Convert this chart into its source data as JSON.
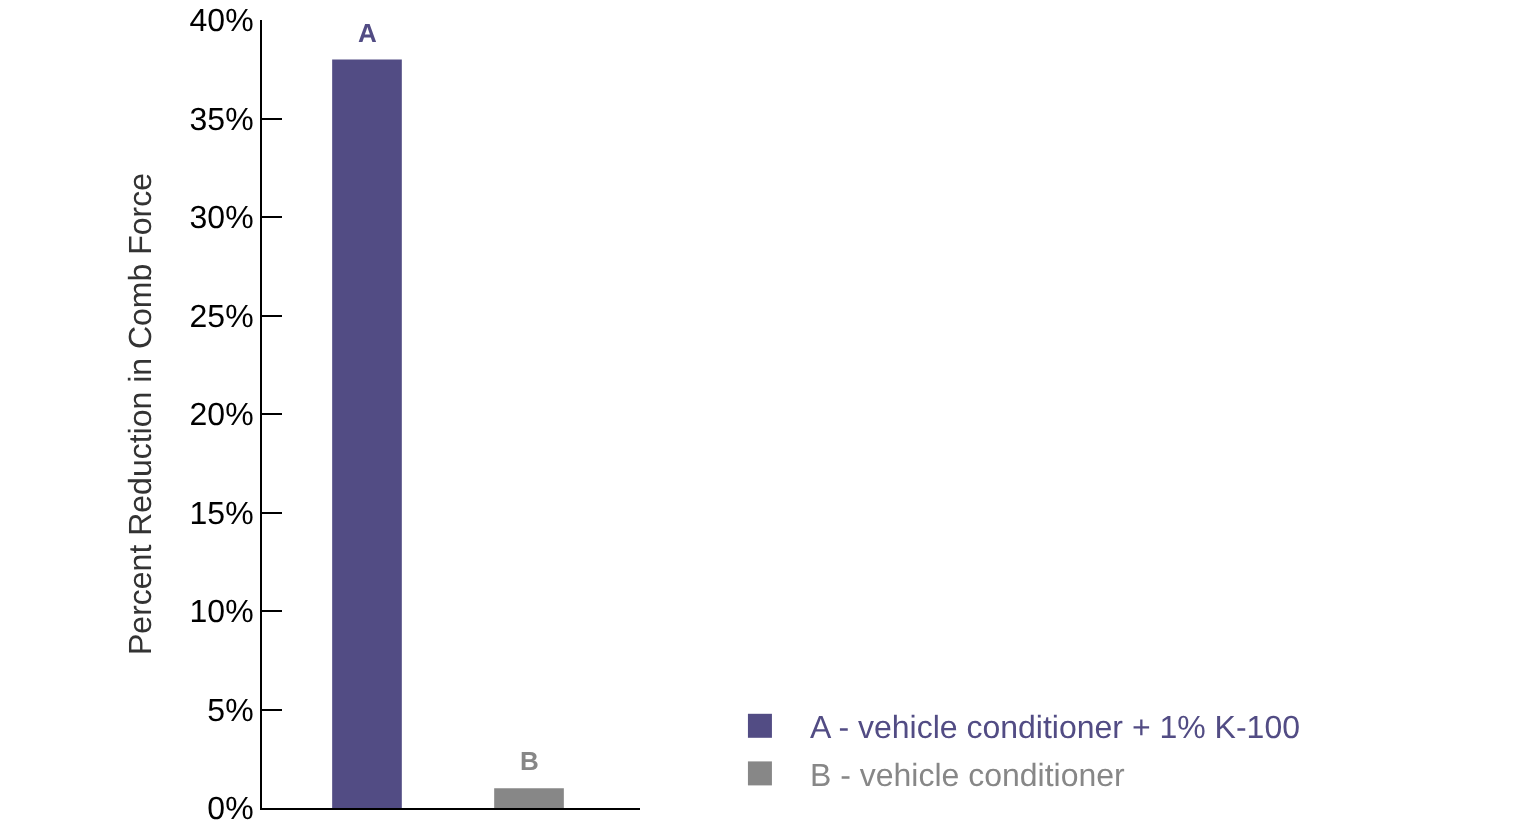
{
  "chart_data": {
    "type": "bar",
    "ylabel": "Percent Reduction in Comb Force",
    "categories": [
      "A",
      "B"
    ],
    "series": [
      {
        "name": "A - vehicle conditioner + 1% K-100",
        "color": "#524c84",
        "values": [
          38,
          null
        ]
      },
      {
        "name": "B - vehicle conditioner",
        "color": "#878787",
        "values": [
          null,
          1
        ]
      }
    ],
    "ylim": [
      0,
      40
    ],
    "yticks": [
      {
        "value": 0,
        "label": "0%"
      },
      {
        "value": 5,
        "label": "5%"
      },
      {
        "value": 10,
        "label": "10%"
      },
      {
        "value": 15,
        "label": "15%"
      },
      {
        "value": 20,
        "label": "20%"
      },
      {
        "value": 25,
        "label": "25%"
      },
      {
        "value": 30,
        "label": "30%"
      },
      {
        "value": 35,
        "label": "35%"
      },
      {
        "value": 40,
        "label": "40%"
      }
    ],
    "tick_labels": "y",
    "legend": "bottom right"
  }
}
